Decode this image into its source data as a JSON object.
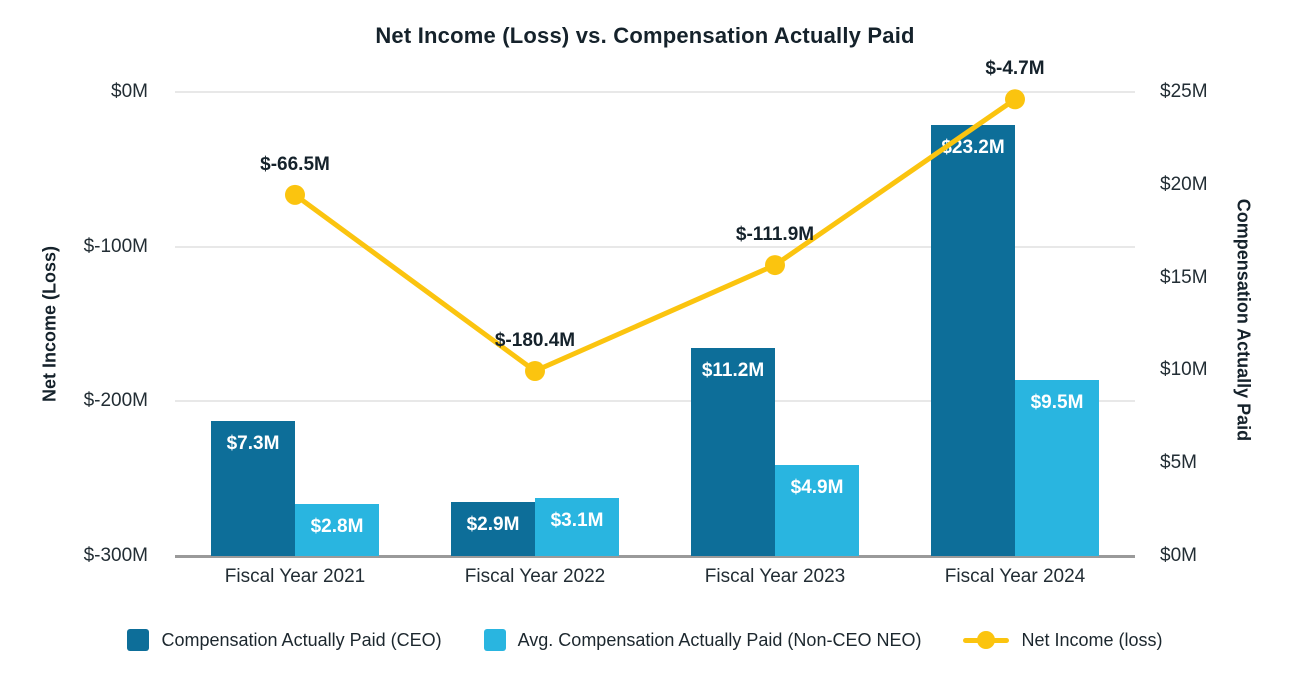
{
  "title": "Net Income (Loss) vs. Compensation Actually Paid",
  "left_axis": {
    "label": "Net Income (Loss)",
    "ticks": [
      "$0M",
      "$-100M",
      "$-200M",
      "$-300M"
    ]
  },
  "right_axis": {
    "label": "Compensation Actually Paid",
    "ticks": [
      "$25M",
      "$20M",
      "$15M",
      "$10M",
      "$5M",
      "$0M"
    ]
  },
  "colors": {
    "ceo_bar": "#0d6e99",
    "neo_bar": "#29b5e0",
    "net_income_line": "#fbc40f",
    "gridline": "#e8e8e8",
    "baseline": "#9a9a9a",
    "text_dark": "#15222b"
  },
  "legend": [
    {
      "label": "Compensation Actually Paid (CEO)",
      "swatch": "square-dark-blue"
    },
    {
      "label": "Avg. Compensation Actually Paid (Non-CEO NEO)",
      "swatch": "square-light-blue"
    },
    {
      "label": "Net Income (loss)",
      "swatch": "yellow-line-dot"
    }
  ],
  "chart_data": {
    "type": "bar+line combo, dual y-axis",
    "categories": [
      "Fiscal Year 2021",
      "Fiscal Year 2022",
      "Fiscal Year 2023",
      "Fiscal Year 2024"
    ],
    "series": [
      {
        "name": "Compensation Actually Paid (CEO)",
        "type": "bar",
        "axis": "right",
        "unit": "USD millions",
        "values": [
          7.3,
          2.9,
          11.2,
          23.2
        ],
        "labels": [
          "$7.3M",
          "$2.9M",
          "$11.2M",
          "$23.2M"
        ]
      },
      {
        "name": "Avg. Compensation Actually Paid (Non-CEO NEO)",
        "type": "bar",
        "axis": "right",
        "unit": "USD millions",
        "values": [
          2.8,
          3.1,
          4.9,
          9.5
        ],
        "labels": [
          "$2.8M",
          "$3.1M",
          "$4.9M",
          "$9.5M"
        ]
      },
      {
        "name": "Net Income (loss)",
        "type": "line",
        "axis": "left",
        "unit": "USD millions",
        "values": [
          -66.5,
          -180.4,
          -111.9,
          -4.7
        ],
        "labels": [
          "$-66.5M",
          "$-180.4M",
          "$-111.9M",
          "$-4.7M"
        ]
      }
    ],
    "left_ylim": [
      -300,
      0
    ],
    "right_ylim": [
      0,
      25
    ],
    "grid": "horizontal gridlines at left-axis ticks only",
    "legend_position": "bottom center"
  }
}
